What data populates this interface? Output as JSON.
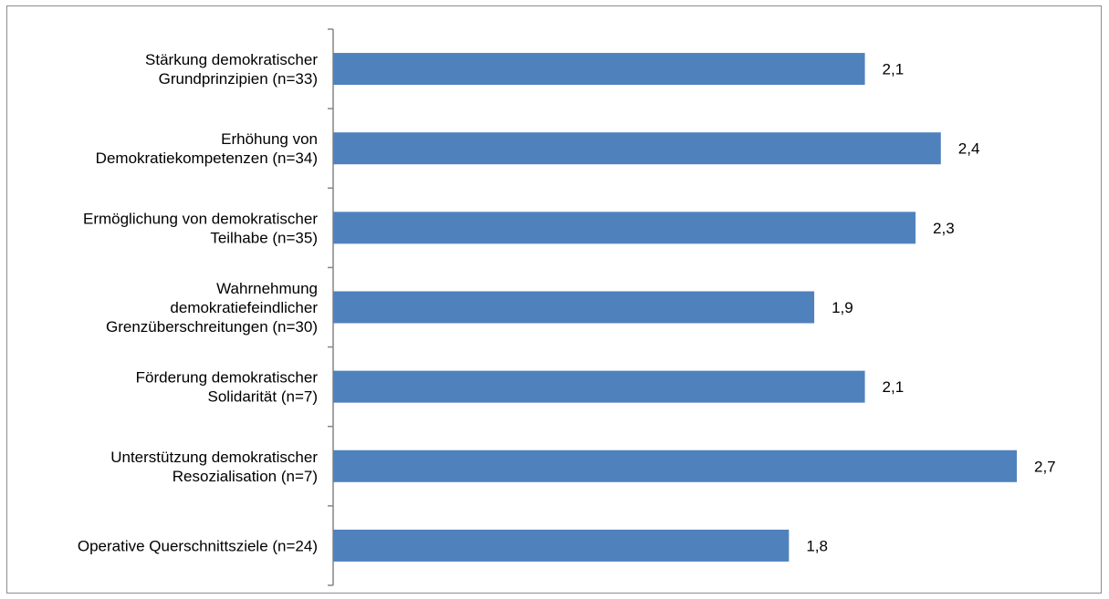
{
  "chart_data": {
    "type": "bar",
    "orientation": "horizontal",
    "categories": [
      [
        "Stärkung demokratischer",
        "Grundprinzipien (n=33)"
      ],
      [
        "Erhöhung von",
        "Demokratiekompetenzen (n=34)"
      ],
      [
        "Ermöglichung von demokratischer",
        "Teilhabe (n=35)"
      ],
      [
        "Wahrnehmung",
        "demokratiefeindlicher",
        "Grenzüberschreitungen (n=30)"
      ],
      [
        "Förderung demokratischer",
        "Solidarität (n=7)"
      ],
      [
        "Unterstützung demokratischer",
        "Resozialisation (n=7)"
      ],
      [
        "Operative Querschnittsziele (n=24)"
      ]
    ],
    "values": [
      2.1,
      2.4,
      2.3,
      1.9,
      2.1,
      2.7,
      1.8
    ],
    "value_labels": [
      "2,1",
      "2,4",
      "2,3",
      "1,9",
      "2,1",
      "2,7",
      "1,8"
    ],
    "title": "",
    "xlabel": "",
    "ylabel": "",
    "xlim": [
      0,
      3
    ],
    "grid": false,
    "legend": "none",
    "bar_color": "#4F81BD"
  }
}
